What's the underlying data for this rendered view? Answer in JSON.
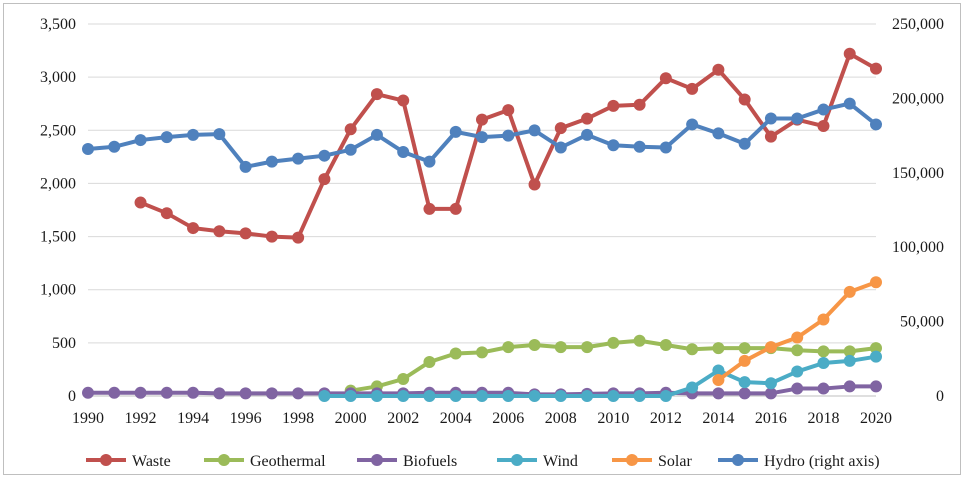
{
  "chart_data": {
    "type": "line",
    "title": "",
    "xlabel": "",
    "ylabel": "",
    "y2label": "",
    "x": [
      1990,
      1991,
      1992,
      1993,
      1994,
      1995,
      1996,
      1997,
      1998,
      1999,
      2000,
      2001,
      2002,
      2003,
      2004,
      2005,
      2006,
      2007,
      2008,
      2009,
      2010,
      2011,
      2012,
      2013,
      2014,
      2015,
      2016,
      2017,
      2018,
      2019,
      2020
    ],
    "xticks": [
      "1990",
      "1992",
      "1994",
      "1996",
      "1998",
      "2000",
      "2002",
      "2004",
      "2006",
      "2008",
      "2010",
      "2012",
      "2014",
      "2016",
      "2018",
      "2020"
    ],
    "xlim": [
      1990,
      2020
    ],
    "ylim": [
      0,
      3500
    ],
    "y2lim": [
      0,
      250000
    ],
    "yticks": [
      "0",
      "500",
      "1,000",
      "1,500",
      "2,000",
      "2,500",
      "3,000",
      "3,500"
    ],
    "y2ticks": [
      "0",
      "50,000",
      "100,000",
      "150,000",
      "200,000",
      "250,000"
    ],
    "grid": true,
    "legend_position": "bottom",
    "series": [
      {
        "name": "Waste",
        "color": "#c0504d",
        "axis": "left",
        "values": [
          null,
          null,
          1820,
          1720,
          1580,
          1550,
          1530,
          1500,
          1490,
          2040,
          2510,
          2840,
          2780,
          1760,
          1760,
          2600,
          2690,
          1990,
          2520,
          2610,
          2730,
          2740,
          2990,
          2890,
          3070,
          2790,
          2440,
          2600,
          2540,
          3220,
          3080
        ]
      },
      {
        "name": "Geothermal",
        "color": "#9bbb59",
        "axis": "left",
        "values": [
          null,
          null,
          null,
          null,
          null,
          null,
          null,
          null,
          null,
          null,
          50,
          90,
          160,
          320,
          400,
          410,
          460,
          480,
          460,
          460,
          500,
          520,
          480,
          440,
          450,
          450,
          450,
          430,
          420,
          420,
          450
        ]
      },
      {
        "name": "Biofuels",
        "color": "#8064a2",
        "axis": "left",
        "values": [
          30,
          30,
          30,
          30,
          30,
          25,
          25,
          25,
          25,
          25,
          25,
          25,
          25,
          30,
          30,
          30,
          30,
          15,
          15,
          20,
          25,
          25,
          30,
          25,
          25,
          25,
          25,
          70,
          70,
          90,
          90
        ]
      },
      {
        "name": "Wind",
        "color": "#4bacc6",
        "axis": "left",
        "values": [
          null,
          null,
          null,
          null,
          null,
          null,
          null,
          null,
          null,
          0,
          0,
          0,
          0,
          0,
          0,
          0,
          0,
          0,
          0,
          0,
          0,
          0,
          0,
          80,
          240,
          130,
          120,
          230,
          310,
          330,
          370
        ]
      },
      {
        "name": "Solar",
        "color": "#f79646",
        "axis": "left",
        "values": [
          null,
          null,
          null,
          null,
          null,
          null,
          null,
          null,
          null,
          null,
          null,
          null,
          null,
          null,
          null,
          null,
          null,
          null,
          null,
          null,
          null,
          null,
          null,
          null,
          150,
          330,
          460,
          550,
          720,
          980,
          1070
        ]
      },
      {
        "name": "Hydro (right axis)",
        "color": "#4f81bd",
        "axis": "right",
        "values": [
          166000,
          167500,
          172000,
          174000,
          175500,
          176000,
          154000,
          157500,
          159500,
          161500,
          165500,
          175500,
          164000,
          157500,
          177500,
          174000,
          175000,
          178500,
          167000,
          175500,
          168500,
          167500,
          167000,
          182500,
          176500,
          169500,
          186500,
          186500,
          192500,
          196500,
          182500
        ]
      }
    ]
  }
}
